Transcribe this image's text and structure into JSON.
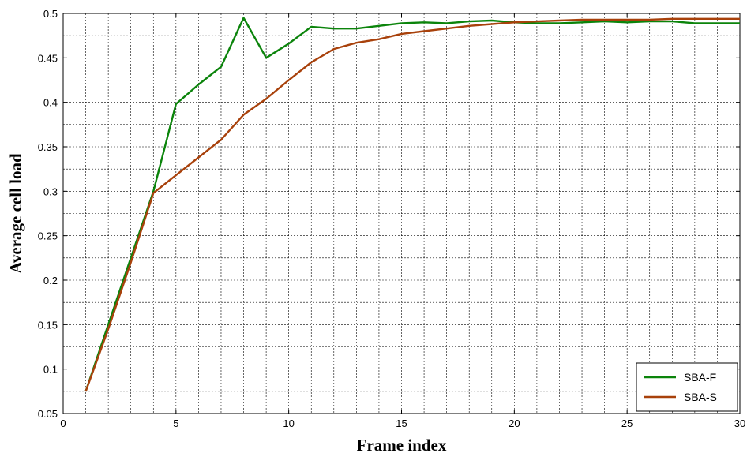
{
  "chart_data": {
    "type": "line",
    "title": "",
    "xlabel": "Frame index",
    "ylabel": "Average cell load",
    "xlim": [
      0,
      30
    ],
    "ylim": [
      0.05,
      0.5
    ],
    "xticks": [
      0,
      5,
      10,
      15,
      20,
      25,
      30
    ],
    "yticks": [
      0.05,
      0.1,
      0.15,
      0.2,
      0.25,
      0.3,
      0.35,
      0.4,
      0.45,
      0.5
    ],
    "grid": true,
    "legend_position": "bottom-right",
    "series": [
      {
        "name": "SBA-F",
        "color": "#0b840b",
        "x": [
          1,
          2,
          3,
          4,
          5,
          6,
          7,
          8,
          9,
          10,
          11,
          12,
          13,
          14,
          15,
          16,
          17,
          18,
          19,
          20,
          21,
          22,
          23,
          24,
          25,
          26,
          27,
          28,
          29,
          30
        ],
        "y": [
          0.075,
          0.15,
          0.225,
          0.3,
          0.398,
          0.42,
          0.44,
          0.495,
          0.45,
          0.466,
          0.485,
          0.483,
          0.483,
          0.486,
          0.489,
          0.49,
          0.489,
          0.491,
          0.492,
          0.49,
          0.489,
          0.489,
          0.49,
          0.491,
          0.49,
          0.491,
          0.491,
          0.489,
          0.489,
          0.489
        ]
      },
      {
        "name": "SBA-S",
        "color": "#a8410b",
        "x": [
          1,
          2,
          3,
          4,
          5,
          6,
          7,
          8,
          9,
          10,
          11,
          12,
          13,
          14,
          15,
          16,
          17,
          18,
          19,
          20,
          21,
          22,
          23,
          24,
          25,
          26,
          27,
          28,
          29,
          30
        ],
        "y": [
          0.075,
          0.145,
          0.22,
          0.298,
          0.318,
          0.338,
          0.358,
          0.386,
          0.404,
          0.425,
          0.445,
          0.46,
          0.467,
          0.471,
          0.477,
          0.48,
          0.483,
          0.486,
          0.488,
          0.49,
          0.491,
          0.492,
          0.493,
          0.493,
          0.493,
          0.493,
          0.494,
          0.494,
          0.494,
          0.494
        ]
      }
    ]
  }
}
